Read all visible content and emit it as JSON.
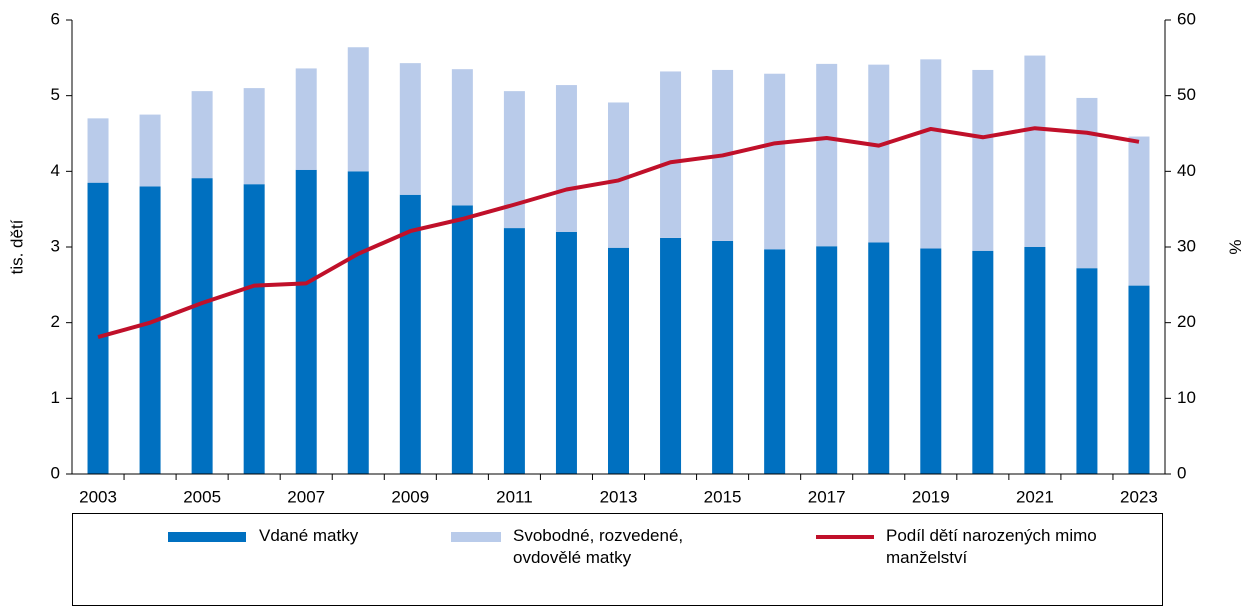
{
  "chart_data": {
    "type": "bar",
    "stacked": true,
    "categories": [
      "2003",
      null,
      "2005",
      null,
      "2007",
      null,
      "2009",
      null,
      "2011",
      null,
      "2013",
      null,
      "2015",
      null,
      "2017",
      null,
      "2019",
      null,
      "2021",
      null,
      "2023"
    ],
    "ylabel": "tis. dětí",
    "y2label": "%",
    "ylim": [
      0,
      6
    ],
    "yticks": [
      0,
      1,
      2,
      3,
      4,
      5,
      6
    ],
    "y2lim": [
      0,
      60
    ],
    "y2ticks": [
      0,
      10,
      20,
      30,
      40,
      50,
      60
    ],
    "series": [
      {
        "name": "Vdané matky",
        "type": "bar",
        "color": "#0070c0",
        "values": [
          3.85,
          3.8,
          3.91,
          3.83,
          4.02,
          4.0,
          3.69,
          3.55,
          3.25,
          3.2,
          2.99,
          3.12,
          3.08,
          2.97,
          3.01,
          3.06,
          2.98,
          2.95,
          3.0,
          2.72,
          2.49
        ]
      },
      {
        "name": "Svobodné, rozvedené, ovdovělé matky",
        "type": "bar",
        "color": "#b9cbea",
        "values": [
          0.85,
          0.95,
          1.15,
          1.27,
          1.34,
          1.64,
          1.74,
          1.8,
          1.81,
          1.94,
          1.92,
          2.2,
          2.26,
          2.32,
          2.41,
          2.35,
          2.5,
          2.39,
          2.53,
          2.25,
          1.97
        ]
      },
      {
        "name": "Podíl dětí narozených mimo manželství",
        "type": "line",
        "axis": "y2",
        "color": "#c0102a",
        "values": [
          18.1,
          20.0,
          22.6,
          24.9,
          25.2,
          29.1,
          32.1,
          33.7,
          35.6,
          37.6,
          38.8,
          41.2,
          42.1,
          43.7,
          44.4,
          43.4,
          45.6,
          44.5,
          45.7,
          45.1,
          43.9
        ]
      }
    ]
  }
}
